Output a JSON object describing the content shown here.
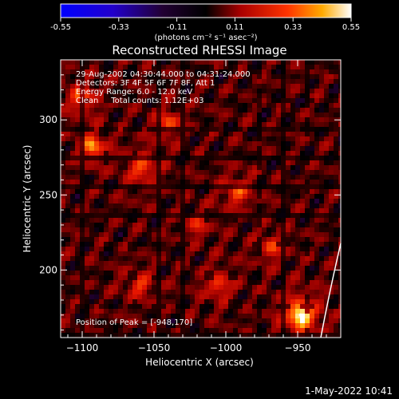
{
  "colorbar": {
    "ticks": [
      "-0.55",
      "-0.33",
      "-0.11",
      "0.11",
      "0.33",
      "0.55"
    ],
    "units": "(photons cm⁻² s⁻¹ asec⁻²)",
    "range": [
      -0.55,
      0.55
    ]
  },
  "chart_data": {
    "type": "heatmap",
    "title": "Reconstructed RHESSI Image",
    "xlabel": "Heliocentric X (arcsec)",
    "ylabel": "Heliocentric Y (arcsec)",
    "xlim": [
      -1115,
      -920
    ],
    "ylim": [
      155,
      340
    ],
    "xticks": [
      -1100,
      -1050,
      -1000,
      -950
    ],
    "xtick_labels": [
      "−1100",
      "−1050",
      "−1000",
      "−950"
    ],
    "yticks": [
      200,
      250,
      300
    ],
    "ytick_labels": [
      "200",
      "250",
      "300"
    ],
    "annotations": {
      "time": "29-Aug-2002 04:30:44.000 to 04:31:24.000",
      "detectors": "Detectors: 3F 4F 5F 6F 7F 8F, Att 1",
      "energy": "Energy Range: 6.0 - 12.0 keV",
      "clean": "Clean     Total counts: 1.12E+03",
      "peak": "Position of Peak = [-948,170]"
    },
    "peak": [
      -948,
      170
    ],
    "sources": [
      {
        "x": -948,
        "y": 170,
        "amp": 0.58,
        "w": 9
      },
      {
        "x": -1093,
        "y": 282,
        "amp": 0.42,
        "w": 7
      },
      {
        "x": -1100,
        "y": 315,
        "amp": 0.32,
        "w": 8
      },
      {
        "x": -1058,
        "y": 268,
        "amp": 0.28,
        "w": 9
      },
      {
        "x": -1040,
        "y": 298,
        "amp": 0.3,
        "w": 7
      },
      {
        "x": -992,
        "y": 252,
        "amp": 0.28,
        "w": 8
      },
      {
        "x": -1005,
        "y": 190,
        "amp": 0.25,
        "w": 8
      },
      {
        "x": -968,
        "y": 215,
        "amp": 0.26,
        "w": 7
      },
      {
        "x": -1060,
        "y": 190,
        "amp": 0.22,
        "w": 8
      },
      {
        "x": -1020,
        "y": 230,
        "amp": 0.2,
        "w": 7
      }
    ]
  },
  "footer": {
    "date": "1-May-2022 10:41"
  }
}
